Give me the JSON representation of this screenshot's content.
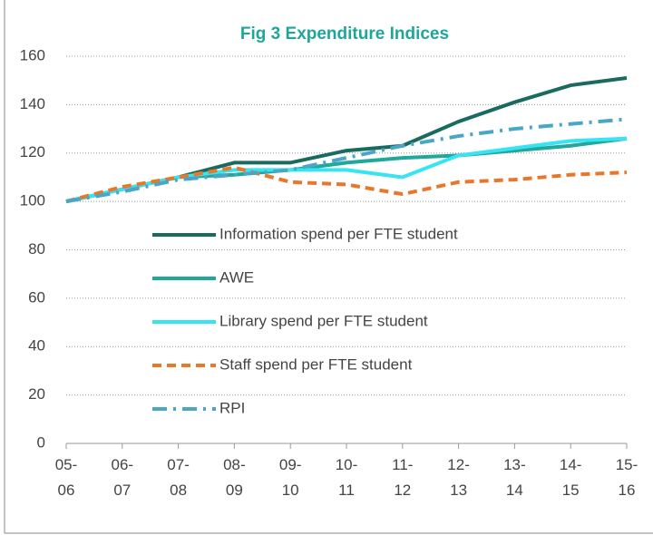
{
  "chart_data": {
    "type": "line",
    "title": "Fig 3 Expenditure Indices",
    "categories": [
      "05-06",
      "06-07",
      "07-08",
      "08-09",
      "09-10",
      "10-11",
      "11-12",
      "12-13",
      "13-14",
      "14-15",
      "15-16"
    ],
    "series": [
      {
        "name": "Information spend per FTE student",
        "color": "#186b5e",
        "dash": "solid",
        "values": [
          100,
          105,
          110,
          116,
          116,
          121,
          123,
          133,
          141,
          148,
          151
        ]
      },
      {
        "name": "AWE",
        "color": "#1fa89b",
        "dash": "solid",
        "values": [
          100,
          105,
          110,
          111,
          113,
          116,
          118,
          119,
          121,
          123,
          126
        ]
      },
      {
        "name": "Library spend per FTE student",
        "color": "#36e4f4",
        "dash": "solid",
        "values": [
          100,
          105,
          110,
          113,
          113,
          113,
          110,
          119,
          122,
          125,
          126
        ]
      },
      {
        "name": "Staff spend per FTE student",
        "color": "#e8772a",
        "dash": "dash",
        "values": [
          100,
          106,
          110,
          114,
          108,
          107,
          103,
          108,
          109,
          111,
          112
        ]
      },
      {
        "name": "RPI",
        "color": "#4aa6c6",
        "dash": "dashdot",
        "values": [
          100,
          104,
          109,
          111,
          113,
          118,
          123,
          127,
          130,
          132,
          134
        ]
      }
    ],
    "ylim": [
      0,
      160
    ],
    "yticks": [
      0,
      20,
      40,
      60,
      80,
      100,
      120,
      140,
      160
    ],
    "grid": true
  }
}
